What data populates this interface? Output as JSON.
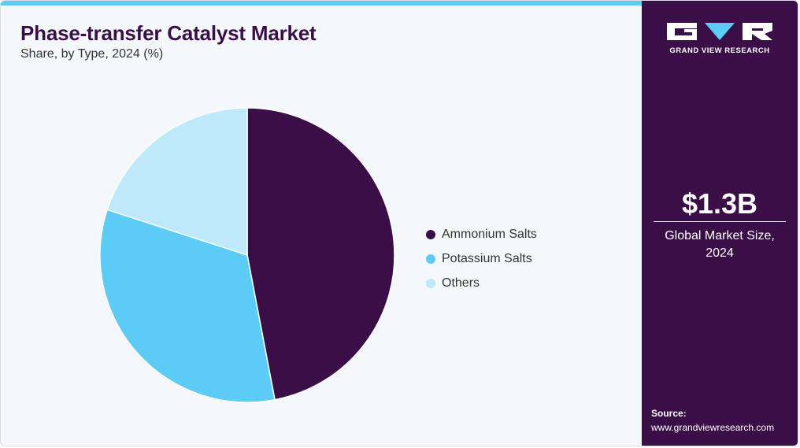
{
  "header": {
    "title": "Phase-transfer Catalyst Market",
    "subtitle": "Share, by Type, 2024 (%)"
  },
  "chart_data": {
    "type": "pie",
    "categories": [
      "Ammonium Salts",
      "Potassium Salts",
      "Others"
    ],
    "values": [
      47,
      33,
      20
    ],
    "colors": [
      "#3a0f47",
      "#5ccbf5",
      "#bde9fa"
    ],
    "legend_placement": "right"
  },
  "brand": {
    "name": "GRAND VIEW RESEARCH"
  },
  "market": {
    "value": "$1.3B",
    "label_line1": "Global Market Size,",
    "label_line2": "2024"
  },
  "source": {
    "label": "Source:",
    "url": "www.grandviewresearch.com"
  },
  "colors": {
    "accent": "#5ccbf5",
    "panel": "#3a0f47",
    "background": "#f4f8fb"
  }
}
